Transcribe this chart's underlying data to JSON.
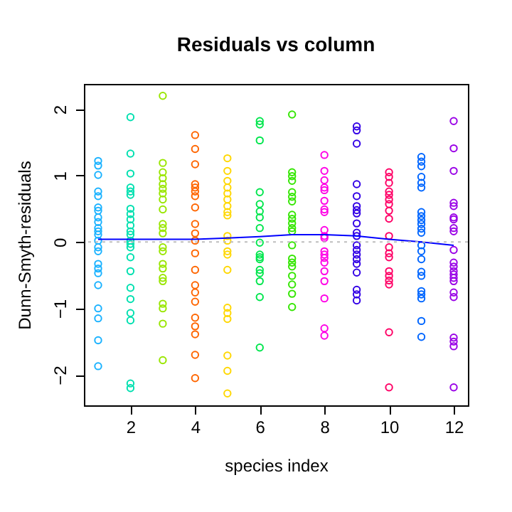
{
  "chart_data": {
    "type": "scatter",
    "title": "Residuals vs column",
    "xlabel": "species index",
    "ylabel": "Dunn-Smyth-residuals",
    "xlim": [
      0.56,
      12.44
    ],
    "ylim": [
      -2.46,
      2.38
    ],
    "xticks": [
      2,
      4,
      6,
      8,
      10,
      12
    ],
    "yticks": [
      -2,
      -1,
      0,
      1,
      2
    ],
    "grid": false,
    "marker": "circle",
    "ref_lines": [
      {
        "axis": "y",
        "value": 0,
        "color": "#bebebe",
        "line_style": "dotted"
      }
    ],
    "series": [
      {
        "color": "#1ab2ff",
        "x": [
          1,
          1,
          1,
          1,
          1,
          1,
          1,
          1,
          1,
          1,
          1,
          1,
          1,
          1,
          1,
          1,
          1,
          1,
          1,
          1,
          1,
          1,
          1
        ],
        "values": [
          1.22,
          1.15,
          1.01,
          0.76,
          0.69,
          0.52,
          0.47,
          0.37,
          0.3,
          0.21,
          0.16,
          0.11,
          0.02,
          -0.08,
          -0.14,
          -0.33,
          -0.4,
          -0.47,
          -0.65,
          -1.0,
          -1.15,
          -1.48,
          -1.87
        ]
      },
      {
        "color": "#00e0b0",
        "x": [
          2,
          2,
          2,
          2,
          2,
          2,
          2,
          2,
          2,
          2,
          2,
          2,
          2,
          2,
          2,
          2,
          2,
          2,
          2,
          2,
          2,
          2,
          2
        ],
        "values": [
          1.88,
          1.33,
          1.03,
          0.82,
          0.76,
          0.71,
          0.5,
          0.42,
          0.34,
          0.25,
          0.16,
          0.11,
          0.02,
          -0.03,
          -0.08,
          -0.23,
          -0.44,
          -0.69,
          -0.86,
          -1.07,
          -1.18,
          -2.13,
          -2.2
        ]
      },
      {
        "color": "#99e600",
        "x": [
          3,
          3,
          3,
          3,
          3,
          3,
          3,
          3,
          3,
          3,
          3,
          3,
          3,
          3,
          3,
          3,
          3,
          3,
          3,
          3,
          3,
          3
        ],
        "values": [
          2.2,
          1.19,
          1.05,
          0.96,
          0.87,
          0.8,
          0.73,
          0.64,
          0.49,
          0.27,
          0.21,
          0.13,
          -0.08,
          -0.14,
          -0.33,
          -0.4,
          -0.54,
          -0.59,
          -0.93,
          -1.0,
          -1.23,
          -1.78
        ]
      },
      {
        "color": "#ff6600",
        "x": [
          4,
          4,
          4,
          4,
          4,
          4,
          4,
          4,
          4,
          4,
          4,
          4,
          4,
          4,
          4,
          4,
          4,
          4,
          4,
          4,
          4
        ],
        "values": [
          1.61,
          1.4,
          1.17,
          0.87,
          0.82,
          0.76,
          0.69,
          0.52,
          0.27,
          0.13,
          0.02,
          -0.17,
          -0.42,
          -0.65,
          -0.76,
          -0.9,
          -1.14,
          -1.27,
          -1.39,
          -1.7,
          -2.05
        ]
      },
      {
        "color": "#ffd700",
        "x": [
          5,
          5,
          5,
          5,
          5,
          5,
          5,
          5,
          5,
          5,
          5,
          5,
          5,
          5,
          5,
          5,
          5,
          5,
          5,
          5
        ],
        "values": [
          1.26,
          1.07,
          0.92,
          0.82,
          0.73,
          0.64,
          0.54,
          0.45,
          0.4,
          0.09,
          0.02,
          -0.14,
          -0.19,
          -0.42,
          -0.99,
          -1.07,
          -1.16,
          -1.71,
          -1.94,
          -2.28
        ]
      },
      {
        "color": "#00e64d",
        "x": [
          6,
          6,
          6,
          6,
          6,
          6,
          6,
          6,
          6,
          6,
          6,
          6,
          6,
          6,
          6,
          6,
          6
        ],
        "values": [
          1.82,
          1.77,
          1.53,
          0.75,
          0.57,
          0.46,
          0.37,
          0.21,
          -0.01,
          -0.19,
          -0.23,
          -0.26,
          -0.42,
          -0.47,
          -0.59,
          -0.83,
          -1.59
        ]
      },
      {
        "color": "#33e600",
        "x": [
          7,
          7,
          7,
          7,
          7,
          7,
          7,
          7,
          7,
          7,
          7,
          7,
          7,
          7,
          7,
          7,
          7,
          7,
          7,
          7
        ],
        "values": [
          1.92,
          1.05,
          0.99,
          0.92,
          0.75,
          0.68,
          0.61,
          0.41,
          0.35,
          0.28,
          0.21,
          0.16,
          -0.05,
          -0.25,
          -0.31,
          -0.37,
          -0.51,
          -0.64,
          -0.78,
          -0.98
        ]
      },
      {
        "color": "#ff00e6",
        "x": [
          8,
          8,
          8,
          8,
          8,
          8,
          8,
          8,
          8,
          8,
          8,
          8,
          8,
          8,
          8,
          8,
          8,
          8,
          8,
          8
        ],
        "values": [
          1.31,
          1.07,
          0.93,
          0.82,
          0.78,
          0.62,
          0.49,
          0.45,
          0.18,
          0.09,
          0.06,
          -0.14,
          -0.19,
          -0.24,
          -0.31,
          -0.44,
          -0.59,
          -0.85,
          -1.3,
          -1.41
        ]
      },
      {
        "color": "#3300e6",
        "x": [
          9,
          9,
          9,
          9,
          9,
          9,
          9,
          9,
          9,
          9,
          9,
          9,
          9,
          9,
          9,
          9,
          9,
          9,
          9,
          9
        ],
        "values": [
          1.74,
          1.68,
          1.48,
          0.87,
          0.69,
          0.54,
          0.48,
          0.43,
          0.28,
          0.14,
          0.09,
          -0.05,
          -0.12,
          -0.19,
          -0.26,
          -0.33,
          -0.46,
          -0.72,
          -0.79,
          -0.88
        ]
      },
      {
        "color": "#ff0066",
        "x": [
          10,
          10,
          10,
          10,
          10,
          10,
          10,
          10,
          10,
          10,
          10,
          10,
          10,
          10,
          10,
          10,
          10,
          10,
          10
        ],
        "values": [
          1.05,
          0.98,
          0.89,
          0.76,
          0.71,
          0.64,
          0.57,
          0.47,
          0.35,
          0.09,
          -0.08,
          -0.17,
          -0.23,
          -0.44,
          -0.51,
          -0.58,
          -0.64,
          -1.36,
          -2.19
        ]
      },
      {
        "color": "#0066ff",
        "x": [
          11,
          11,
          11,
          11,
          11,
          11,
          11,
          11,
          11,
          11,
          11,
          11,
          11,
          11,
          11,
          11,
          11,
          11,
          11,
          11,
          11,
          11
        ],
        "values": [
          1.28,
          1.21,
          1.14,
          0.98,
          0.89,
          0.82,
          0.45,
          0.39,
          0.33,
          0.27,
          0.2,
          0.14,
          -0.05,
          -0.14,
          -0.26,
          -0.45,
          -0.51,
          -0.74,
          -0.79,
          -0.85,
          -1.19,
          -1.43
        ]
      },
      {
        "color": "#9900e6",
        "x": [
          12,
          12,
          12,
          12,
          12,
          12,
          12,
          12,
          12,
          12,
          12,
          12,
          12,
          12,
          12,
          12,
          12,
          12,
          12,
          12,
          12,
          12
        ],
        "values": [
          1.82,
          1.41,
          1.07,
          0.59,
          0.54,
          0.37,
          0.34,
          0.21,
          0.16,
          -0.12,
          -0.31,
          -0.37,
          -0.44,
          -0.49,
          -0.54,
          -0.59,
          -0.76,
          -0.83,
          -1.44,
          -1.5,
          -1.57,
          -2.19
        ]
      },
      {
        "type": "line",
        "color": "#0000ff",
        "marker": "none",
        "x": [
          1,
          2,
          3,
          4,
          5,
          6,
          7,
          8,
          9,
          10,
          11,
          12
        ],
        "values": [
          0.04,
          0.04,
          0.04,
          0.04,
          0.06,
          0.08,
          0.11,
          0.11,
          0.09,
          0.04,
          0.0,
          -0.05
        ]
      }
    ]
  }
}
